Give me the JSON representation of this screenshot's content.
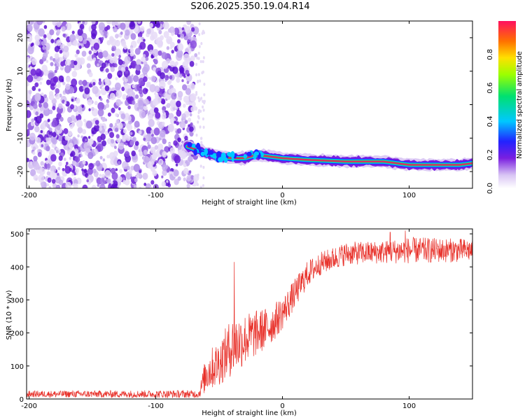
{
  "title": "S206.2025.350.19.04.R14",
  "chart_data": [
    {
      "type": "heatmap",
      "xlabel": "Height of straight line (km)",
      "ylabel": "Frequency (Hz)",
      "xlim": [
        -202,
        150
      ],
      "ylim": [
        -25,
        25
      ],
      "xticks": [
        -200,
        -100,
        0,
        100
      ],
      "yticks": [
        -20,
        -10,
        0,
        10,
        20
      ],
      "noise_region_x": [
        -202,
        -68
      ],
      "signal_band": [
        {
          "x": -75,
          "y": -12.5
        },
        {
          "x": -60,
          "y": -14.5
        },
        {
          "x": -50,
          "y": -15.5
        },
        {
          "x": -40,
          "y": -16.0
        },
        {
          "x": -30,
          "y": -16.0
        },
        {
          "x": -20,
          "y": -15.0
        },
        {
          "x": -10,
          "y": -15.5
        },
        {
          "x": 0,
          "y": -16.0
        },
        {
          "x": 20,
          "y": -16.5
        },
        {
          "x": 50,
          "y": -17.0
        },
        {
          "x": 80,
          "y": -17.0
        },
        {
          "x": 100,
          "y": -18.0
        },
        {
          "x": 140,
          "y": -18.0
        },
        {
          "x": 150,
          "y": -17.5
        }
      ],
      "colorbar": {
        "label": "Normalized spectral amplitude",
        "range": [
          0,
          1
        ],
        "ticks": [
          "0.0",
          "0.2",
          "0.4",
          "0.6",
          "0.8"
        ]
      }
    },
    {
      "type": "line",
      "series_name": "SNR",
      "color": "#e8312a",
      "xlabel": "Height of straight line (km)",
      "ylabel": "SNR (10 * v/v)",
      "xlim": [
        -202,
        150
      ],
      "ylim": [
        0,
        515
      ],
      "xticks": [
        -200,
        -100,
        0,
        100
      ],
      "yticks": [
        0,
        100,
        200,
        300,
        400,
        500
      ],
      "envelope": [
        {
          "x": -202,
          "mean": 15,
          "spread": 10
        },
        {
          "x": -66,
          "mean": 15,
          "spread": 12
        },
        {
          "x": -60,
          "mean": 80,
          "spread": 60
        },
        {
          "x": -50,
          "mean": 110,
          "spread": 70
        },
        {
          "x": -40,
          "mean": 160,
          "spread": 90
        },
        {
          "x": -30,
          "mean": 180,
          "spread": 80
        },
        {
          "x": -20,
          "mean": 200,
          "spread": 70
        },
        {
          "x": -10,
          "mean": 220,
          "spread": 60
        },
        {
          "x": 0,
          "mean": 260,
          "spread": 50
        },
        {
          "x": 10,
          "mean": 320,
          "spread": 45
        },
        {
          "x": 20,
          "mean": 380,
          "spread": 40
        },
        {
          "x": 30,
          "mean": 410,
          "spread": 35
        },
        {
          "x": 50,
          "mean": 440,
          "spread": 35
        },
        {
          "x": 80,
          "mean": 445,
          "spread": 35
        },
        {
          "x": 100,
          "mean": 450,
          "spread": 40
        },
        {
          "x": 150,
          "mean": 450,
          "spread": 35
        }
      ],
      "spikes": [
        {
          "x": -38,
          "y": 415
        },
        {
          "x": 97,
          "y": 510
        },
        {
          "x": 85,
          "y": 505
        }
      ]
    }
  ]
}
